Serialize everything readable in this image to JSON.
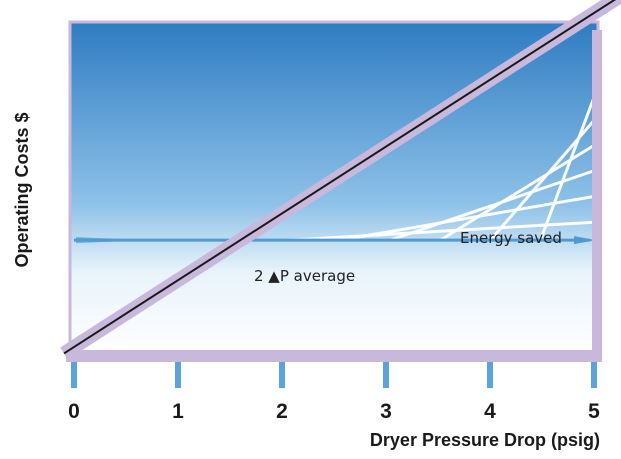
{
  "chart_data": {
    "type": "line",
    "xlabel": "Dryer Pressure Drop (psig)",
    "ylabel": "Operating Costs $",
    "xlim": [
      0,
      5
    ],
    "x_ticks": [
      "0",
      "1",
      "2",
      "3",
      "4",
      "5"
    ],
    "y_ticks_shown": false,
    "grid": false,
    "series": [
      {
        "x": [
          0,
          5
        ],
        "y": [
          0,
          1
        ]
      }
    ],
    "annotations": {
      "energy_saved": "Energy saved",
      "average": "2 ▲P average"
    },
    "average_level": 0.32,
    "colors": {
      "line_band": "#c8b8dc",
      "line": "#1a1a1a",
      "background_top": "#2f7cc2",
      "background_bottom": "#ffffff",
      "average_arrow": "#4f9ad2",
      "frame": "#c8b8dc"
    }
  }
}
